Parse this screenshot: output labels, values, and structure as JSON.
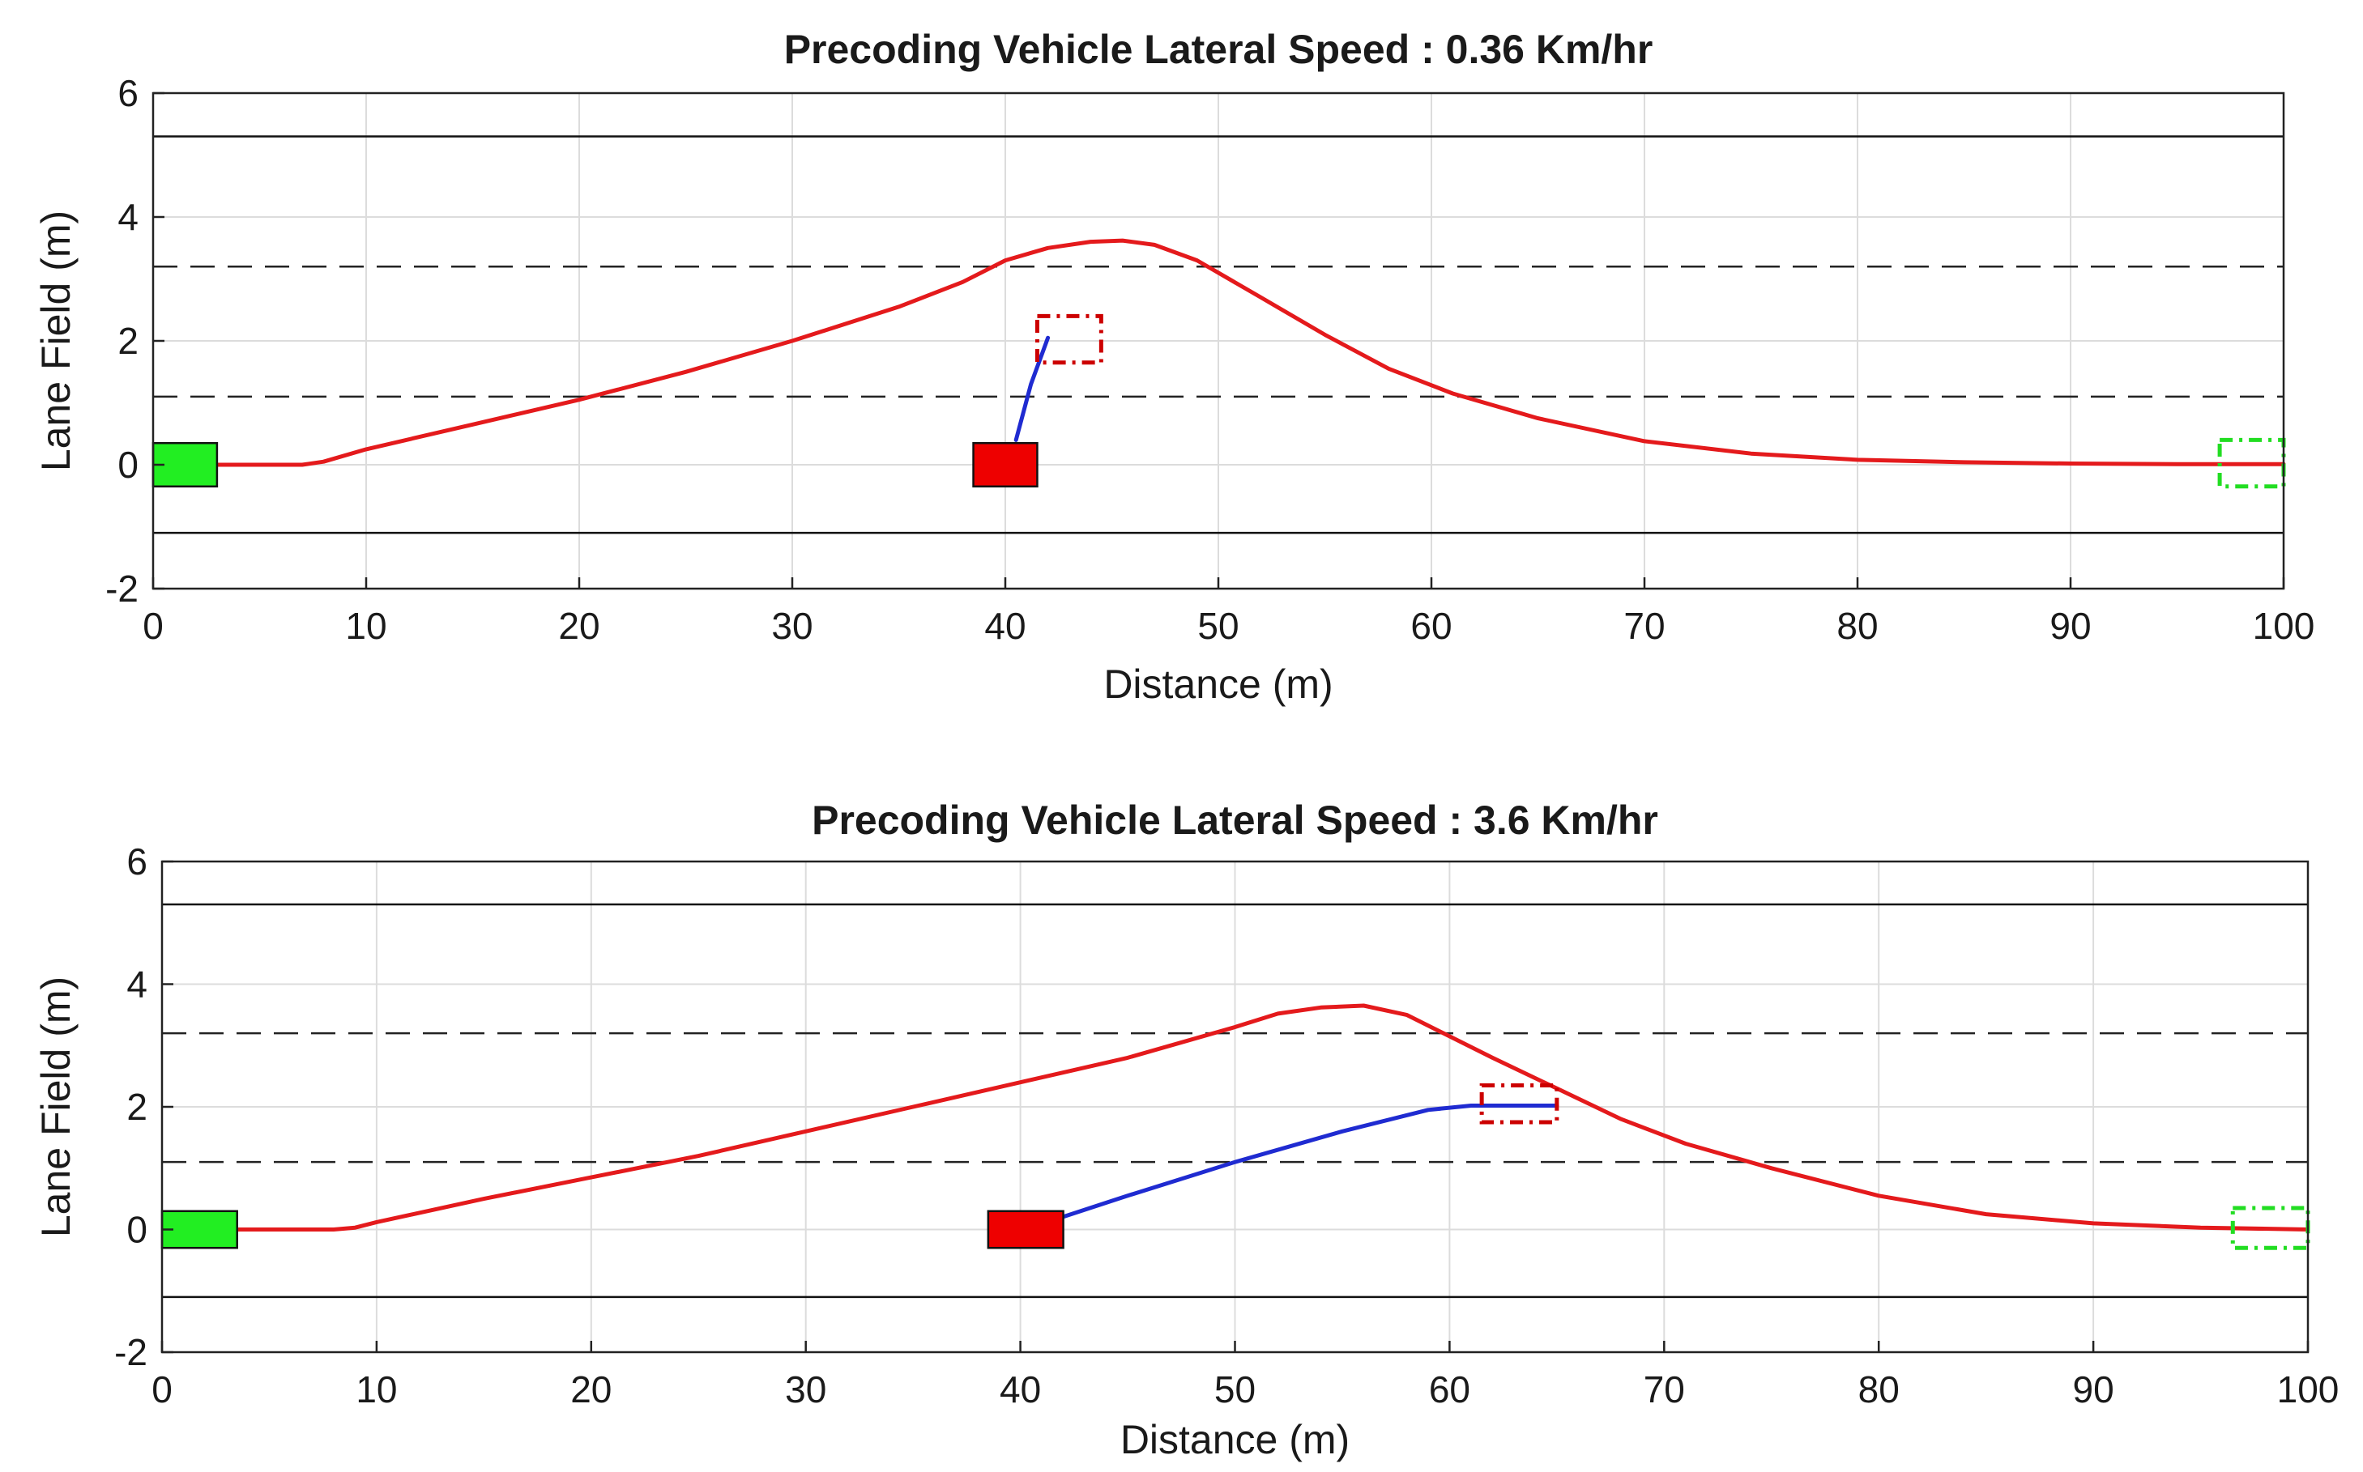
{
  "chart_data": [
    {
      "type": "line",
      "title": "Precoding Vehicle Lateral Speed : 0.36 Km/hr",
      "xlabel": "Distance (m)",
      "ylabel": "Lane Field (m)",
      "xlim": [
        0,
        100
      ],
      "ylim": [
        -2,
        6
      ],
      "xticks": [
        0,
        10,
        20,
        30,
        40,
        50,
        60,
        70,
        80,
        90,
        100
      ],
      "yticks": [
        -2,
        0,
        2,
        4,
        6
      ],
      "grid": true,
      "lane_boundaries": {
        "solid": [
          -1.1,
          5.3
        ],
        "dashed": [
          1.1,
          3.2
        ]
      },
      "series": [
        {
          "name": "ego trajectory",
          "color": "#e41a1c",
          "x": [
            3,
            5,
            7,
            8,
            10,
            15,
            20,
            25,
            30,
            35,
            38,
            40,
            42,
            44,
            45.5,
            47,
            49,
            52,
            55,
            58,
            61,
            65,
            70,
            75,
            80,
            85,
            90,
            95,
            100
          ],
          "y": [
            0,
            0,
            0,
            0.05,
            0.25,
            0.65,
            1.05,
            1.5,
            2.0,
            2.55,
            2.95,
            3.3,
            3.5,
            3.6,
            3.62,
            3.55,
            3.3,
            2.7,
            2.1,
            1.55,
            1.15,
            0.75,
            0.38,
            0.18,
            0.08,
            0.04,
            0.02,
            0.01,
            0.01
          ]
        },
        {
          "name": "preceding vehicle trajectory",
          "color": "#1f2bd1",
          "x": [
            40.5,
            41.2,
            42
          ],
          "y": [
            0.4,
            1.3,
            2.05
          ]
        }
      ],
      "vehicles": [
        {
          "name": "ego start",
          "x0": 0,
          "x1": 3,
          "y0": -0.35,
          "y1": 0.35,
          "fill": "#22ee22",
          "style": "solid"
        },
        {
          "name": "preceding vehicle start",
          "x0": 38.5,
          "x1": 41.5,
          "y0": -0.35,
          "y1": 0.35,
          "fill": "#ee0000",
          "style": "solid"
        },
        {
          "name": "preceding vehicle end",
          "x0": 41.5,
          "x1": 44.5,
          "y0": 1.65,
          "y1": 2.4,
          "stroke": "#cc0000",
          "style": "dashdot"
        },
        {
          "name": "ego end",
          "x0": 97,
          "x1": 100,
          "y0": -0.35,
          "y1": 0.4,
          "stroke": "#22dd22",
          "style": "dashdot"
        }
      ]
    },
    {
      "type": "line",
      "title": "Precoding Vehicle Lateral Speed : 3.6 Km/hr",
      "xlabel": "Distance (m)",
      "ylabel": "Lane Field (m)",
      "xlim": [
        0,
        100
      ],
      "ylim": [
        -2,
        6
      ],
      "xticks": [
        0,
        10,
        20,
        30,
        40,
        50,
        60,
        70,
        80,
        90,
        100
      ],
      "yticks": [
        -2,
        0,
        2,
        4,
        6
      ],
      "grid": true,
      "lane_boundaries": {
        "solid": [
          -1.1,
          5.3
        ],
        "dashed": [
          1.1,
          3.2
        ]
      },
      "series": [
        {
          "name": "ego trajectory",
          "color": "#e41a1c",
          "x": [
            3.5,
            6,
            8,
            9,
            10,
            15,
            20,
            25,
            30,
            35,
            40,
            45,
            50,
            52,
            54,
            56,
            58,
            60,
            62,
            65,
            68,
            71,
            75,
            80,
            85,
            90,
            95,
            100
          ],
          "y": [
            0,
            0,
            0,
            0.03,
            0.12,
            0.5,
            0.85,
            1.2,
            1.6,
            2.0,
            2.4,
            2.8,
            3.3,
            3.52,
            3.62,
            3.65,
            3.5,
            3.15,
            2.8,
            2.3,
            1.8,
            1.4,
            1.0,
            0.55,
            0.25,
            0.1,
            0.03,
            0
          ]
        },
        {
          "name": "preceding vehicle trajectory",
          "color": "#1f2bd1",
          "x": [
            41.5,
            45,
            50,
            55,
            59,
            61,
            62.5,
            65
          ],
          "y": [
            0.15,
            0.55,
            1.1,
            1.6,
            1.95,
            2.02,
            2.02,
            2.02
          ]
        }
      ],
      "vehicles": [
        {
          "name": "ego start",
          "x0": 0,
          "x1": 3.5,
          "y0": -0.3,
          "y1": 0.3,
          "fill": "#22ee22",
          "style": "solid"
        },
        {
          "name": "preceding vehicle start",
          "x0": 38.5,
          "x1": 42,
          "y0": -0.3,
          "y1": 0.3,
          "fill": "#ee0000",
          "style": "solid"
        },
        {
          "name": "preceding vehicle end",
          "x0": 61.5,
          "x1": 65,
          "y0": 1.75,
          "y1": 2.35,
          "stroke": "#cc0000",
          "style": "dashdot"
        },
        {
          "name": "ego end",
          "x0": 96.5,
          "x1": 100,
          "y0": -0.3,
          "y1": 0.35,
          "stroke": "#22dd22",
          "style": "dashdot"
        }
      ]
    }
  ]
}
